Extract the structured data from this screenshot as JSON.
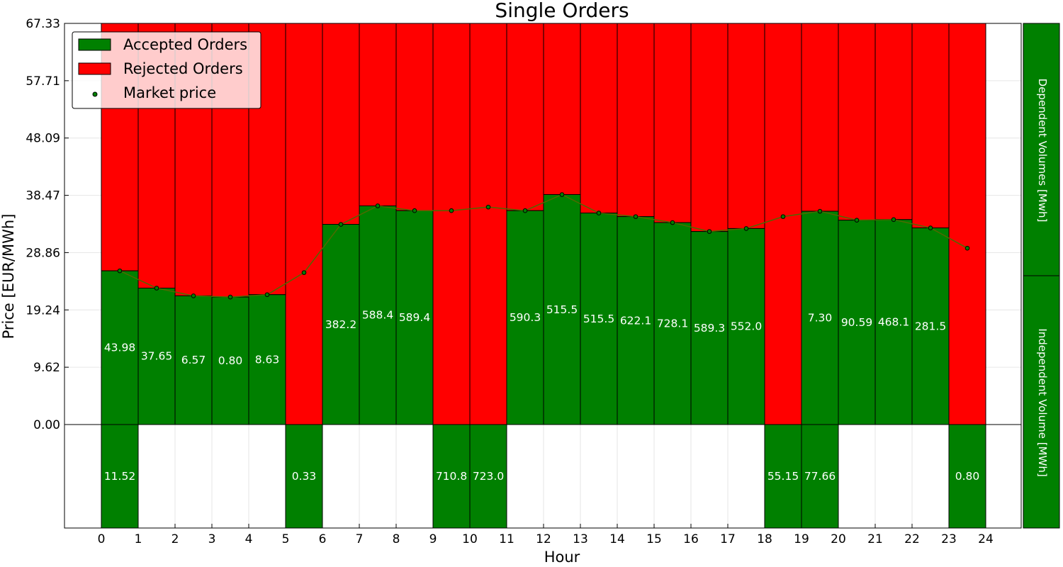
{
  "chart_data": {
    "type": "bar",
    "title": "Single Orders",
    "xlabel": "Hour",
    "ylabel": "Price [EUR/MWh]",
    "ylim": [
      0,
      67.33
    ],
    "yticks": [
      "0.00",
      "9.62",
      "19.24",
      "28.86",
      "38.47",
      "48.09",
      "57.71",
      "67.33"
    ],
    "xticks": [
      "0",
      "1",
      "2",
      "3",
      "4",
      "5",
      "6",
      "7",
      "8",
      "9",
      "10",
      "11",
      "12",
      "13",
      "14",
      "15",
      "16",
      "17",
      "18",
      "19",
      "20",
      "21",
      "22",
      "23",
      "24"
    ],
    "grid": true,
    "legend_position": "top-left",
    "legend": {
      "accepted": "Accepted Orders",
      "rejected": "Rejected Orders",
      "market": "Market price"
    },
    "colors": {
      "accepted": "#008000",
      "rejected": "#ff0000",
      "market_line": "#4d6a00"
    },
    "hours": [
      0,
      1,
      2,
      3,
      4,
      5,
      6,
      7,
      8,
      9,
      10,
      11,
      12,
      13,
      14,
      15,
      16,
      17,
      18,
      19,
      20,
      21,
      22,
      23
    ],
    "market_price": [
      25.8,
      22.9,
      21.6,
      21.4,
      21.8,
      25.5,
      33.6,
      36.7,
      35.9,
      35.9,
      36.5,
      35.9,
      38.6,
      35.5,
      34.9,
      33.9,
      32.4,
      32.9,
      34.9,
      35.8,
      34.3,
      34.4,
      33.0,
      29.6
    ],
    "accepted_price": [
      25.8,
      22.9,
      21.6,
      21.4,
      21.8,
      null,
      33.6,
      36.7,
      35.9,
      null,
      null,
      35.9,
      38.6,
      35.5,
      34.9,
      33.9,
      32.4,
      32.9,
      null,
      35.8,
      34.3,
      34.4,
      33.0,
      null
    ],
    "accepted_labels": [
      "43.98",
      "37.65",
      "6.57",
      "0.80",
      "8.63",
      "",
      "382.2",
      "588.4",
      "589.4",
      "",
      "",
      "590.3",
      "515.5",
      "515.5",
      "622.1",
      "728.1",
      "589.3",
      "552.0",
      "",
      "7.30",
      "90.59",
      "468.1",
      "281.5",
      ""
    ],
    "dependent_labels": [
      "11.52",
      "",
      "",
      "",
      "",
      "0.33",
      "",
      "",
      "",
      "710.8",
      "723.0",
      "",
      "",
      "",
      "",
      "",
      "",
      "",
      "55.15",
      "77.66",
      "",
      "",
      "",
      "0.80"
    ],
    "side_labels": {
      "top": "Dependent Volumes [Mwh]",
      "bottom": "Independent Volume [MWh]"
    }
  }
}
